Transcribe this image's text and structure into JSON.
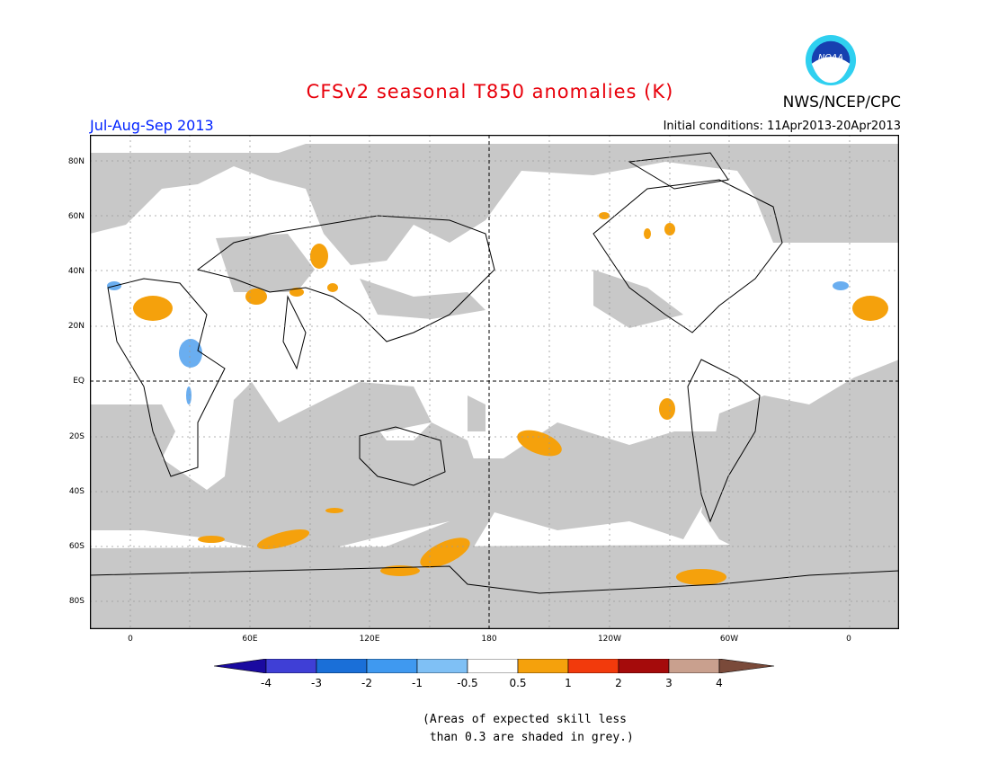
{
  "title": "CFSv2 seasonal T850 anomalies (K)",
  "agency": "NWS/NCEP/CPC",
  "logo_text": "NOAA",
  "season": "Jul-Aug-Sep 2013",
  "initial_conditions": "Initial conditions: 11Apr2013-20Apr2013",
  "lat_labels": [
    "80N",
    "60N",
    "40N",
    "20N",
    "EQ",
    "20S",
    "40S",
    "60S",
    "80S"
  ],
  "lon_labels": [
    "0",
    "60E",
    "120E",
    "180",
    "120W",
    "60W",
    "0"
  ],
  "colorbar": {
    "labels": [
      "-4",
      "-3",
      "-2",
      "-1",
      "-0.5",
      "0.5",
      "1",
      "2",
      "3",
      "4"
    ],
    "colors": [
      "#1a0aa0",
      "#3f3fd6",
      "#1a6fd8",
      "#3f99f0",
      "#7fc0f5",
      "#ffffff",
      "#f5a10c",
      "#f23a0c",
      "#a50b0b",
      "#c9a08e",
      "#7a4a3a"
    ]
  },
  "note_line1": "(Areas of expected skill less",
  "note_line2": " than 0.3 are shaded in grey.)",
  "colors": {
    "grey": "#c8c8c8",
    "orange": "#f5a10c",
    "blue": "#6aaef0",
    "title": "#e8000b",
    "season": "#0022ff"
  }
}
